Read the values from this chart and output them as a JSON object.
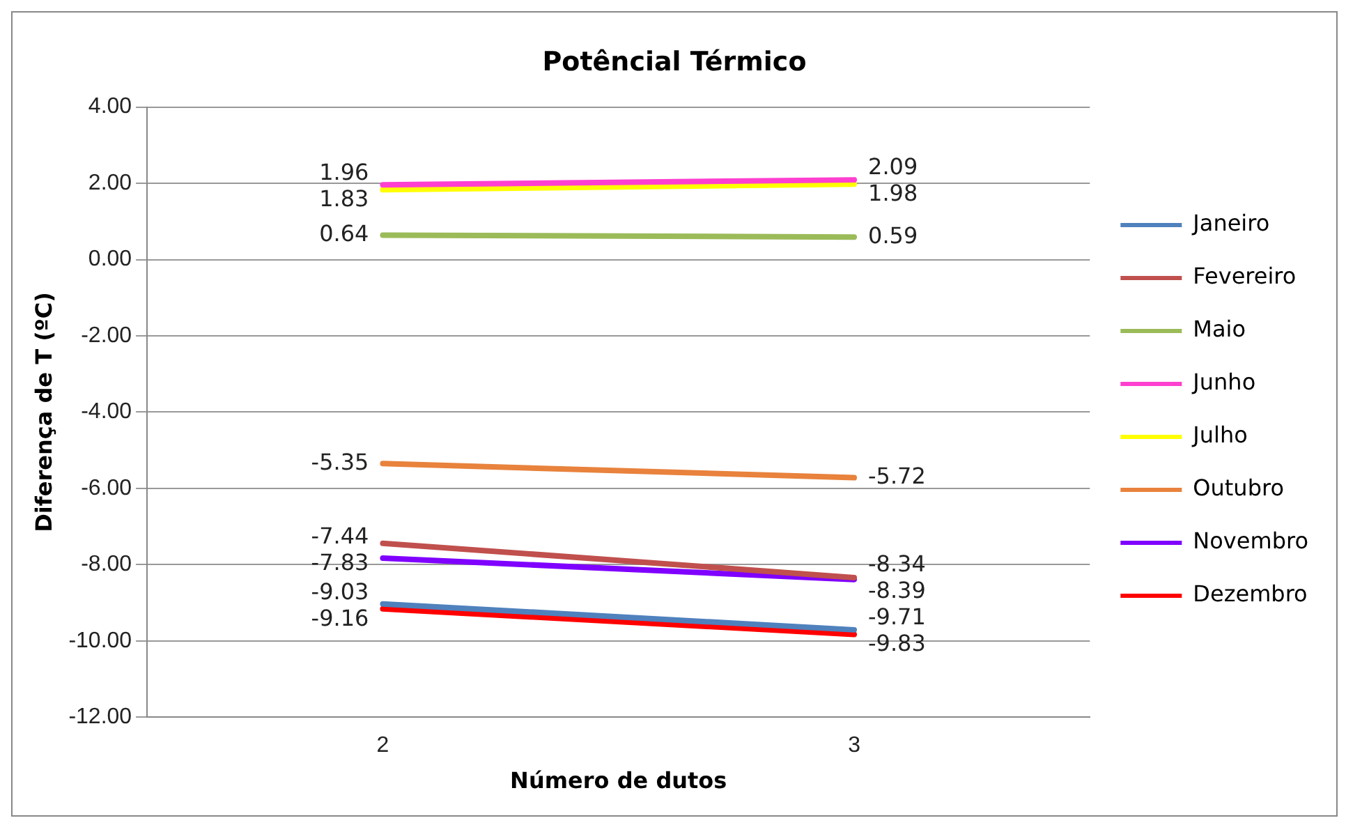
{
  "chart_data": {
    "type": "line",
    "title": "Potêncial Térmico",
    "xlabel": "Número de dutos",
    "ylabel": "Diferença de T (ºC)",
    "categories": [
      "2",
      "3"
    ],
    "series": [
      {
        "name": "Janeiro",
        "color": "#4f81bd",
        "values": [
          -9.03,
          -9.71
        ]
      },
      {
        "name": "Fevereiro",
        "color": "#c0504d",
        "values": [
          -7.44,
          -8.34
        ]
      },
      {
        "name": "Maio",
        "color": "#9bbb59",
        "values": [
          0.64,
          0.59
        ]
      },
      {
        "name": "Junho",
        "color": "#ff3fd0",
        "values": [
          1.96,
          2.09
        ]
      },
      {
        "name": "Julho",
        "color": "#ffff00",
        "values": [
          1.83,
          1.98
        ]
      },
      {
        "name": "Outubro",
        "color": "#e8823c",
        "values": [
          -5.35,
          -5.72
        ]
      },
      {
        "name": "Novembro",
        "color": "#7f00ff",
        "values": [
          -7.83,
          -8.39
        ]
      },
      {
        "name": "Dezembro",
        "color": "#ff0000",
        "values": [
          -9.16,
          -9.83
        ]
      }
    ],
    "ylim": [
      -12,
      4
    ],
    "yticks": [
      {
        "value": -12,
        "label": "-12.00"
      },
      {
        "value": -10,
        "label": "-10.00"
      },
      {
        "value": -8,
        "label": "-8.00"
      },
      {
        "value": -6,
        "label": "-6.00"
      },
      {
        "value": -4,
        "label": "-4.00"
      },
      {
        "value": -2,
        "label": "-2.00"
      },
      {
        "value": 0,
        "label": "0.00"
      },
      {
        "value": 2,
        "label": "2.00"
      },
      {
        "value": 4,
        "label": "4.00"
      }
    ],
    "grid": "y",
    "legend": "right",
    "marker": "none",
    "line_style": "solid",
    "data_labels": true
  }
}
